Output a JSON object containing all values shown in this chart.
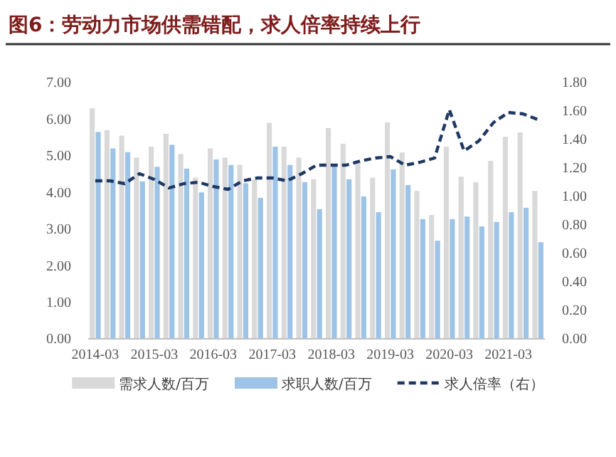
{
  "chart_data": {
    "type": "bar",
    "title": "图6：劳动力市场供需错配，求人倍率持续上行",
    "categories": [
      "2014-03",
      null,
      null,
      null,
      "2015-03",
      null,
      null,
      null,
      "2016-03",
      null,
      null,
      null,
      "2017-03",
      null,
      null,
      null,
      "2018-03",
      null,
      null,
      null,
      "2019-03",
      null,
      null,
      null,
      "2020-03",
      null,
      null,
      null,
      "2021-03",
      null,
      null
    ],
    "series": [
      {
        "name": "需求人数/百万",
        "color": "#d9d9d9",
        "values": [
          6.3,
          5.7,
          5.55,
          4.95,
          5.25,
          5.6,
          5.05,
          4.4,
          5.2,
          4.95,
          4.75,
          4.35,
          5.9,
          5.25,
          4.95,
          4.36,
          5.76,
          5.33,
          4.86,
          4.4,
          5.91,
          5.09,
          4.04,
          3.38,
          5.25,
          4.43,
          4.28,
          4.86,
          5.52,
          5.64,
          4.04
        ]
      },
      {
        "name": "求职人数/百万",
        "color": "#9dc3e6",
        "values": [
          5.65,
          5.2,
          5.1,
          4.3,
          4.7,
          5.3,
          4.65,
          4.0,
          4.9,
          4.75,
          4.25,
          3.85,
          5.25,
          4.75,
          4.28,
          3.54,
          4.74,
          4.36,
          3.89,
          3.46,
          4.63,
          4.2,
          3.27,
          2.68,
          3.27,
          3.34,
          3.07,
          3.19,
          3.46,
          3.58,
          2.64
        ]
      },
      {
        "name": "求人倍率（右）",
        "type": "line",
        "axis": "y2",
        "color": "#1f3864",
        "line_style": "dashed",
        "values": [
          1.11,
          1.11,
          1.09,
          1.16,
          1.12,
          1.06,
          1.09,
          1.1,
          1.07,
          1.05,
          1.11,
          1.13,
          1.13,
          1.11,
          1.16,
          1.22,
          1.22,
          1.22,
          1.25,
          1.27,
          1.28,
          1.22,
          1.24,
          1.27,
          1.61,
          1.32,
          1.39,
          1.52,
          1.59,
          1.58,
          1.54
        ]
      }
    ],
    "ylim": [
      0,
      7
    ],
    "yticks": [
      {
        "value": 0,
        "label": "0.00"
      },
      {
        "value": 1,
        "label": "1.00"
      },
      {
        "value": 2,
        "label": "2.00"
      },
      {
        "value": 3,
        "label": "3.00"
      },
      {
        "value": 4,
        "label": "4.00"
      },
      {
        "value": 5,
        "label": "5.00"
      },
      {
        "value": 6,
        "label": "6.00"
      },
      {
        "value": 7,
        "label": "7.00"
      }
    ],
    "y2lim": [
      0,
      1.8
    ],
    "y2ticks": [
      {
        "value": 0,
        "label": "0.00"
      },
      {
        "value": 0.2,
        "label": "0.20"
      },
      {
        "value": 0.4,
        "label": "0.40"
      },
      {
        "value": 0.6,
        "label": "0.60"
      },
      {
        "value": 0.8,
        "label": "0.80"
      },
      {
        "value": 1,
        "label": "1.00"
      },
      {
        "value": 1.2,
        "label": "1.20"
      },
      {
        "value": 1.4,
        "label": "1.40"
      },
      {
        "value": 1.6,
        "label": "1.60"
      },
      {
        "value": 1.8,
        "label": "1.80"
      }
    ],
    "legend": "bottom",
    "grid": false
  }
}
